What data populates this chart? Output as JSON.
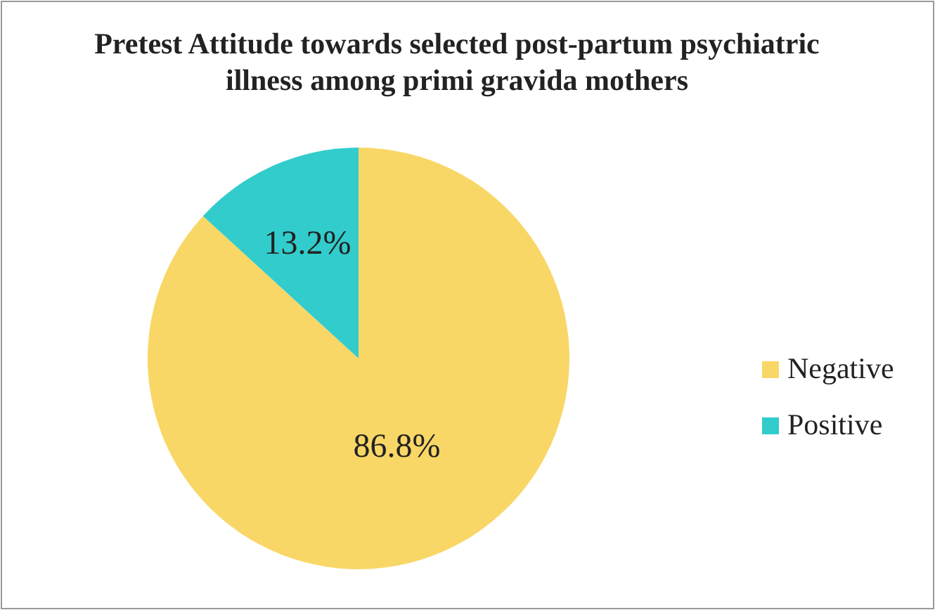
{
  "chart_data": {
    "type": "pie",
    "title": "Pretest Attitude towards selected post-partum psychiatric illness among  primi gravida mothers",
    "categories": [
      "Negative",
      "Positive"
    ],
    "values": [
      86.8,
      13.2
    ],
    "value_labels": [
      "86.8%",
      "13.2%"
    ],
    "colors": [
      "#f8d766",
      "#33cccc"
    ],
    "legend": "right"
  }
}
